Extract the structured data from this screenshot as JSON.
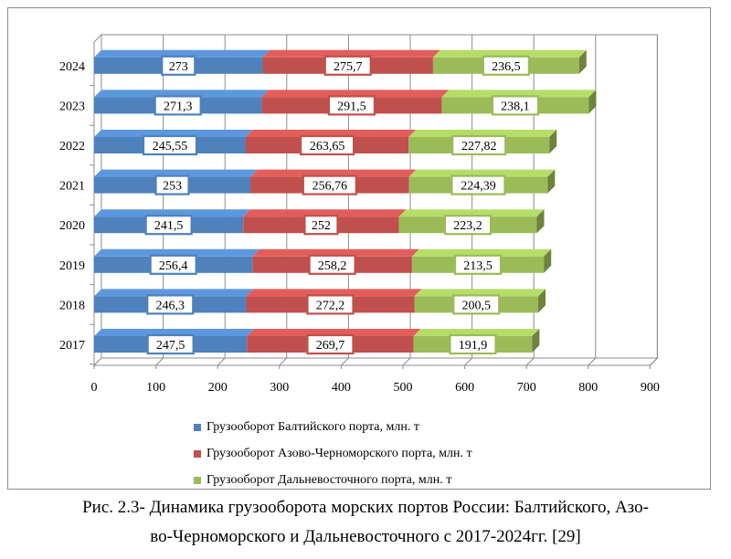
{
  "chart_data": {
    "type": "bar",
    "orientation": "horizontal",
    "stacked": true,
    "style": "3d",
    "categories": [
      "2017",
      "2018",
      "2019",
      "2020",
      "2021",
      "2022",
      "2023",
      "2024"
    ],
    "series": [
      {
        "name": "Грузооборот Балтийского порта, млн. т",
        "color": "#4f81bd",
        "values": [
          247.5,
          246.3,
          256.4,
          241.5,
          253,
          245.55,
          271.3,
          273
        ],
        "labels": [
          "247,5",
          "246,3",
          "256,4",
          "241,5",
          "253",
          "245,55",
          "271,3",
          "273"
        ]
      },
      {
        "name": "Грузооборот Азово-Черноморского  порта, млн. т",
        "color": "#c0504d",
        "values": [
          269.7,
          272.2,
          258.2,
          252,
          256.76,
          263.65,
          291.5,
          275.7
        ],
        "labels": [
          "269,7",
          "272,2",
          "258,2",
          "252",
          "256,76",
          "263,65",
          "291,5",
          "275,7"
        ]
      },
      {
        "name": "Грузооборот Дальневосточного  порта, млн. т",
        "color": "#9bbb59",
        "values": [
          191.9,
          200.5,
          213.5,
          223.2,
          224.39,
          227.82,
          238.1,
          236.5
        ],
        "labels": [
          "191,9",
          "200,5",
          "213,5",
          "223,2",
          "224,39",
          "227,82",
          "238,1",
          "236,5"
        ]
      }
    ],
    "xlim": [
      0,
      900
    ],
    "xticks": [
      "0",
      "100",
      "200",
      "300",
      "400",
      "500",
      "600",
      "700",
      "800",
      "900"
    ],
    "grid": true,
    "legend_position": "bottom"
  },
  "caption": {
    "line1": "Рис. 2.3- Динамика грузооборота морских портов России: Балтийского, Азо-",
    "line2": "во-Черноморского и Дальневосточного с 2017-2024гг. [29]"
  }
}
